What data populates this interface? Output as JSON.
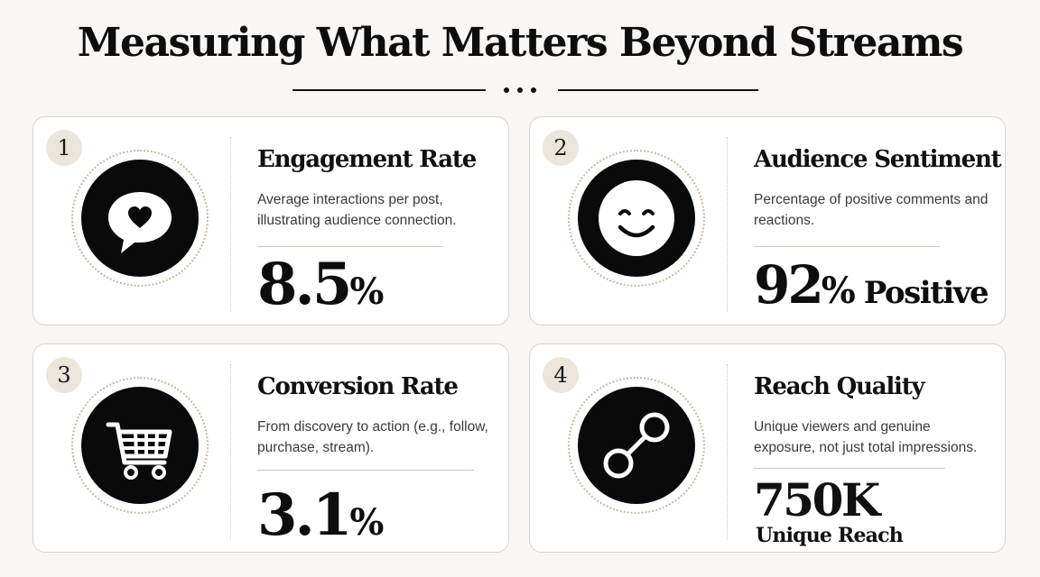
{
  "header": {
    "title": "Measuring What Matters Beyond Streams"
  },
  "cards": [
    {
      "number": "1",
      "icon": "speech-bubble-heart-icon",
      "title": "Engagement Rate",
      "description": "Average interactions per post, illustrating audience connection.",
      "value": "8.5",
      "unit": "%"
    },
    {
      "number": "2",
      "icon": "smiley-face-icon",
      "title": "Audience Sentiment",
      "description": "Percentage of positive comments and reactions.",
      "value": "92",
      "unit": "%",
      "suffix": "Positive"
    },
    {
      "number": "3",
      "icon": "shopping-cart-icon",
      "title": "Conversion Rate",
      "description": "From discovery to action (e.g., follow, purchase, stream).",
      "value": "3.1",
      "unit": "%"
    },
    {
      "number": "4",
      "icon": "connection-link-icon",
      "title": "Reach Quality",
      "description": "Unique viewers and genuine exposure, not just total impressions.",
      "value": "750K",
      "caption": "Unique Reach"
    }
  ],
  "colors": {
    "background": "#f8f7f5",
    "card": "#ffffff",
    "icon_disc": "#0a0a0a",
    "badge": "#ece5db",
    "accent_rule": "#d9c8b4"
  }
}
